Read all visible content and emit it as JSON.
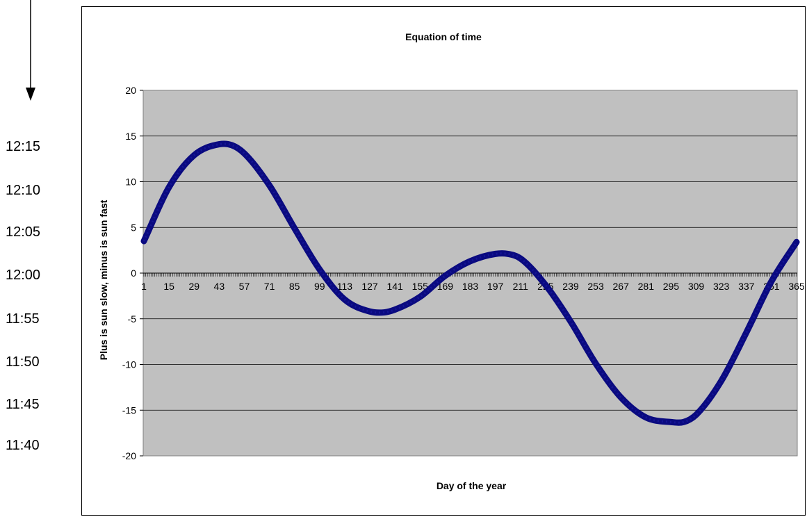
{
  "side_scale": {
    "labels": [
      "12:15",
      "12:10",
      "12:05",
      "12:00",
      "11:55",
      "11:50",
      "11:45",
      "11:40"
    ]
  },
  "chart_data": {
    "type": "line",
    "title": "Equation of time",
    "xlabel": "Day of the year",
    "ylabel": "Plus is sun slow, minus is sun fast",
    "ylim": [
      -20,
      20
    ],
    "yticks": [
      20,
      15,
      10,
      5,
      0,
      -5,
      -10,
      -15,
      -20
    ],
    "xlim": [
      1,
      365
    ],
    "xtick_labels": [
      1,
      15,
      29,
      43,
      57,
      71,
      85,
      99,
      113,
      127,
      141,
      155,
      169,
      183,
      197,
      211,
      225,
      239,
      253,
      267,
      281,
      295,
      309,
      323,
      337,
      351,
      365
    ],
    "grid": true,
    "series": [
      {
        "color": "#0a0a80",
        "x": [
          1,
          15,
          29,
          43,
          50,
          57,
          71,
          85,
          99,
          113,
          127,
          135,
          141,
          155,
          169,
          183,
          197,
          204,
          211,
          225,
          239,
          253,
          267,
          281,
          295,
          302,
          309,
          323,
          337,
          351,
          365
        ],
        "y": [
          3.5,
          9.4,
          12.9,
          14.1,
          14.0,
          13.1,
          9.6,
          4.9,
          0.4,
          -2.9,
          -4.2,
          -4.3,
          -4.0,
          -2.6,
          -0.3,
          1.3,
          2.1,
          2.1,
          1.6,
          -1.3,
          -5.3,
          -9.9,
          -13.6,
          -15.8,
          -16.3,
          -16.3,
          -15.5,
          -11.8,
          -6.5,
          -0.9,
          3.4
        ]
      }
    ],
    "plot_background": "#c0c0c0"
  }
}
